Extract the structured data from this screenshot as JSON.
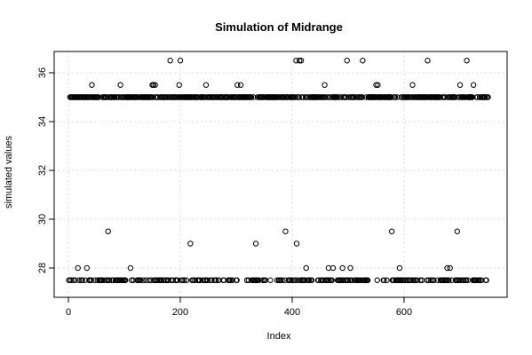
{
  "chart_data": {
    "type": "scatter",
    "title": "Simulation of Midrange",
    "xlabel": "Index",
    "ylabel": "simulated values",
    "xlim": [
      0,
      750
    ],
    "ylim": [
      27.2,
      36.8
    ],
    "xticks": [
      0,
      200,
      400,
      600
    ],
    "yticks": [
      28,
      30,
      32,
      34,
      36
    ],
    "grid": true,
    "series": [
      {
        "outliers_high": [
          [
            42,
            35.5
          ],
          [
            93,
            35.5
          ],
          [
            150,
            35.5
          ],
          [
            152,
            35.5
          ],
          [
            155,
            35.5
          ],
          [
            182,
            36.5
          ],
          [
            198,
            35.5
          ],
          [
            200,
            36.5
          ],
          [
            246,
            35.5
          ],
          [
            302,
            35.5
          ],
          [
            308,
            35.5
          ],
          [
            407,
            36.5
          ],
          [
            413,
            36.5
          ],
          [
            416,
            36.5
          ],
          [
            458,
            35.5
          ],
          [
            498,
            36.5
          ],
          [
            526,
            36.5
          ],
          [
            550,
            35.5
          ],
          [
            553,
            35.5
          ],
          [
            615,
            35.5
          ],
          [
            642,
            36.5
          ],
          [
            682,
            35.5
          ],
          [
            700,
            35.5
          ],
          [
            712,
            36.5
          ],
          [
            724,
            35.5
          ]
        ],
        "outliers_low": [
          [
            17,
            28
          ],
          [
            33,
            28
          ],
          [
            71,
            29.5
          ],
          [
            111,
            28
          ],
          [
            218,
            29
          ],
          [
            335,
            29
          ],
          [
            388,
            29.5
          ],
          [
            408,
            29
          ],
          [
            425,
            28
          ],
          [
            465,
            28
          ],
          [
            473,
            28
          ],
          [
            490,
            28
          ],
          [
            504,
            28
          ],
          [
            578,
            29.5
          ],
          [
            592,
            28
          ],
          [
            677,
            28
          ],
          [
            682,
            28
          ],
          [
            695,
            29.5
          ]
        ],
        "main_high": 35,
        "main_low": 27.5,
        "n": 750
      }
    ]
  }
}
